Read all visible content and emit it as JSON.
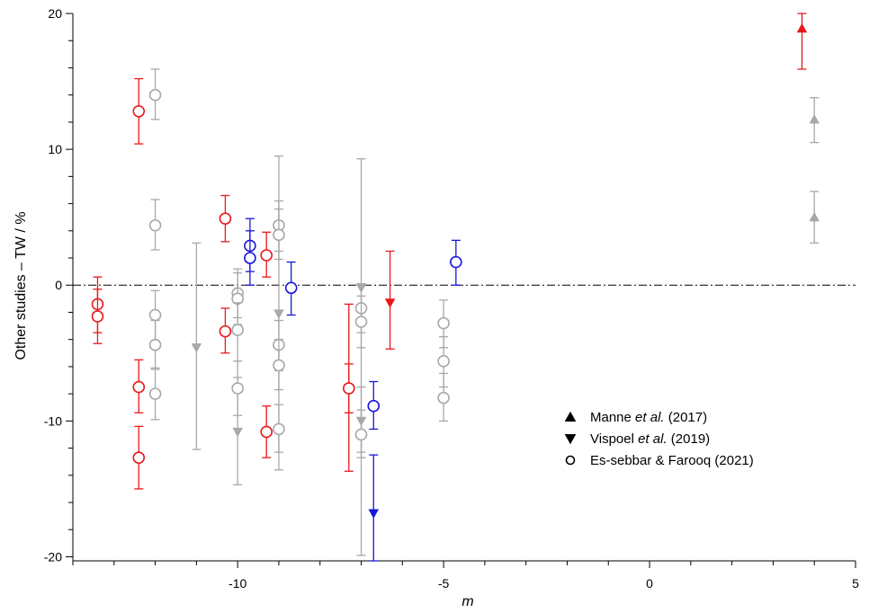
{
  "chart_data": {
    "type": "scatter",
    "xlabel": "m",
    "ylabel": "Other studies – TW / %",
    "xlim": [
      -14,
      5
    ],
    "ylim": [
      -20.3,
      20
    ],
    "x_ticks": [
      -10,
      -5,
      0,
      5
    ],
    "y_ticks": [
      -20,
      -10,
      0,
      10,
      20
    ],
    "reference_line": {
      "y": 0,
      "style": "dash-dot"
    },
    "legend": {
      "placement": "lower-right",
      "entries": [
        {
          "marker": "triangle-up",
          "label": "Manne et al. (2017)",
          "plain": "Manne ",
          "italic": "et al.",
          "tail": " (2017)"
        },
        {
          "marker": "triangle-down",
          "label": "Vispoel et al. (2019)",
          "plain": "Vispoel ",
          "italic": "et al.",
          "tail": " (2019)"
        },
        {
          "marker": "circle-open",
          "label": "Es-sebbar & Farooq (2021)",
          "plain": "Es-sebbar & Farooq (2021)",
          "italic": "",
          "tail": ""
        }
      ]
    },
    "colors": {
      "red": "#e8191c",
      "blue": "#1717d8",
      "gray": "#a8a8a8"
    },
    "series": [
      {
        "marker": "triangle-up",
        "color": "red",
        "points": [
          {
            "x": 3.7,
            "y": 18.9,
            "lo": 15.9,
            "hi": 20.0
          }
        ]
      },
      {
        "marker": "triangle-up",
        "color": "gray",
        "points": [
          {
            "x": 4.0,
            "y": 12.2,
            "lo": 10.5,
            "hi": 13.8
          },
          {
            "x": 4.0,
            "y": 5.0,
            "lo": 3.1,
            "hi": 6.9
          }
        ]
      },
      {
        "marker": "triangle-down",
        "color": "red",
        "points": [
          {
            "x": -6.3,
            "y": -1.3,
            "lo": -4.7,
            "hi": 2.5
          },
          {
            "x": -7.3,
            "y": -7.6,
            "lo": -13.7,
            "hi": -1.4
          }
        ]
      },
      {
        "marker": "triangle-down",
        "color": "blue",
        "points": [
          {
            "x": -6.7,
            "y": -16.8,
            "lo": -20.3,
            "hi": -12.5
          }
        ]
      },
      {
        "marker": "triangle-down",
        "color": "gray",
        "points": [
          {
            "x": -11.0,
            "y": -4.6,
            "lo": -12.1,
            "hi": 3.1
          },
          {
            "x": -10.0,
            "y": -10.8,
            "lo": -14.7,
            "hi": -6.8
          },
          {
            "x": -9.0,
            "y": -2.1,
            "lo": -13.6,
            "hi": 9.5
          },
          {
            "x": -7.0,
            "y": -0.2,
            "lo": -19.9,
            "hi": 9.3
          },
          {
            "x": -7.0,
            "y": -10.0,
            "lo": -12.3,
            "hi": -7.5
          }
        ]
      },
      {
        "marker": "circle-open",
        "color": "red",
        "points": [
          {
            "x": -13.4,
            "y": -1.4,
            "lo": -3.5,
            "hi": 0.6
          },
          {
            "x": -13.4,
            "y": -2.3,
            "lo": -4.3,
            "hi": -0.3
          },
          {
            "x": -12.4,
            "y": 12.8,
            "lo": 10.4,
            "hi": 15.2
          },
          {
            "x": -12.4,
            "y": -7.5,
            "lo": -9.4,
            "hi": -5.5
          },
          {
            "x": -12.4,
            "y": -12.7,
            "lo": -15.0,
            "hi": -10.4
          },
          {
            "x": -10.3,
            "y": 4.9,
            "lo": 3.2,
            "hi": 6.6
          },
          {
            "x": -10.3,
            "y": -3.4,
            "lo": -5.0,
            "hi": -1.7
          },
          {
            "x": -9.3,
            "y": 2.2,
            "lo": 0.6,
            "hi": 3.9
          },
          {
            "x": -9.3,
            "y": -10.8,
            "lo": -12.7,
            "hi": -8.9
          },
          {
            "x": -7.3,
            "y": -7.6,
            "lo": -9.4,
            "hi": -5.8
          }
        ]
      },
      {
        "marker": "circle-open",
        "color": "blue",
        "points": [
          {
            "x": -9.7,
            "y": 2.9,
            "lo": 1.0,
            "hi": 4.9
          },
          {
            "x": -9.7,
            "y": 2.0,
            "lo": 0.0,
            "hi": 4.0
          },
          {
            "x": -8.7,
            "y": -0.2,
            "lo": -2.2,
            "hi": 1.7
          },
          {
            "x": -6.7,
            "y": -8.9,
            "lo": -10.6,
            "hi": -7.1
          },
          {
            "x": -4.7,
            "y": 1.7,
            "lo": 0.0,
            "hi": 3.3
          }
        ]
      },
      {
        "marker": "circle-open",
        "color": "gray",
        "points": [
          {
            "x": -12.0,
            "y": 14.0,
            "lo": 12.2,
            "hi": 15.9
          },
          {
            "x": -12.0,
            "y": 4.4,
            "lo": 2.6,
            "hi": 6.3
          },
          {
            "x": -12.0,
            "y": -2.2,
            "lo": -4.1,
            "hi": -0.4
          },
          {
            "x": -12.0,
            "y": -4.4,
            "lo": -6.1,
            "hi": -2.6
          },
          {
            "x": -12.0,
            "y": -8.0,
            "lo": -9.9,
            "hi": -6.2
          },
          {
            "x": -10.0,
            "y": -0.6,
            "lo": -2.4,
            "hi": 1.2
          },
          {
            "x": -10.0,
            "y": -1.0,
            "lo": -2.9,
            "hi": 0.9
          },
          {
            "x": -10.0,
            "y": -3.3,
            "lo": -5.6,
            "hi": -1.3
          },
          {
            "x": -10.0,
            "y": -7.6,
            "lo": -9.6,
            "hi": -5.6
          },
          {
            "x": -9.0,
            "y": 4.4,
            "lo": 2.5,
            "hi": 6.2
          },
          {
            "x": -9.0,
            "y": 3.7,
            "lo": 1.9,
            "hi": 5.6
          },
          {
            "x": -9.0,
            "y": -4.4,
            "lo": -6.3,
            "hi": -2.6
          },
          {
            "x": -9.0,
            "y": -5.9,
            "lo": -7.7,
            "hi": -4.0
          },
          {
            "x": -9.0,
            "y": -10.6,
            "lo": -12.3,
            "hi": -8.8
          },
          {
            "x": -7.0,
            "y": -1.7,
            "lo": -3.5,
            "hi": 0.1
          },
          {
            "x": -7.0,
            "y": -2.7,
            "lo": -4.6,
            "hi": -0.8
          },
          {
            "x": -7.0,
            "y": -11.0,
            "lo": -12.7,
            "hi": -9.2
          },
          {
            "x": -5.0,
            "y": -2.8,
            "lo": -4.6,
            "hi": -1.1
          },
          {
            "x": -5.0,
            "y": -5.6,
            "lo": -7.5,
            "hi": -3.8
          },
          {
            "x": -5.0,
            "y": -8.3,
            "lo": -10.0,
            "hi": -6.5
          }
        ]
      }
    ]
  }
}
